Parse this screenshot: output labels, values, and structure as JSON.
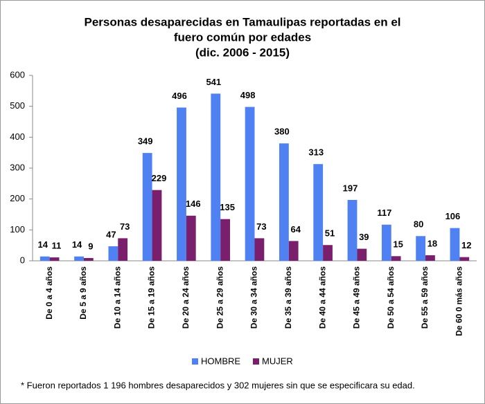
{
  "chart_data": {
    "type": "bar",
    "title": [
      "Personas desaparecidas en Tamaulipas reportadas en el",
      "fuero común por edades",
      "(dic. 2006 - 2015)"
    ],
    "categories": [
      "De 0 a 4 años",
      "De 5 a 9 años",
      "De 10 a 14 años",
      "De 15 a 19 años",
      "De 20 a 24 años",
      "De 25 a 29 años",
      "De 30 a 34 años",
      "De 35 a 39 años",
      "De 40 a 44 años",
      "De 45 a 49 años",
      "De 50 a 54 años",
      "De 55 a 59 años",
      "De 60 0 más años"
    ],
    "series": [
      {
        "name": "HOMBRE",
        "color": "#4f81f2",
        "values": [
          14,
          14,
          47,
          349,
          496,
          541,
          498,
          380,
          313,
          197,
          117,
          80,
          106
        ]
      },
      {
        "name": "MUJER",
        "color": "#7a1f6c",
        "values": [
          11,
          9,
          73,
          229,
          146,
          135,
          73,
          64,
          51,
          39,
          15,
          18,
          12
        ]
      }
    ],
    "ylim": [
      0,
      600
    ],
    "yticks": [
      0,
      100,
      200,
      300,
      400,
      500,
      600
    ],
    "grid": false,
    "legend": "bottom",
    "note": "* Fueron reportados 1 196 hombres desaparecidos y 302 mujeres sin que se especificara su edad."
  }
}
